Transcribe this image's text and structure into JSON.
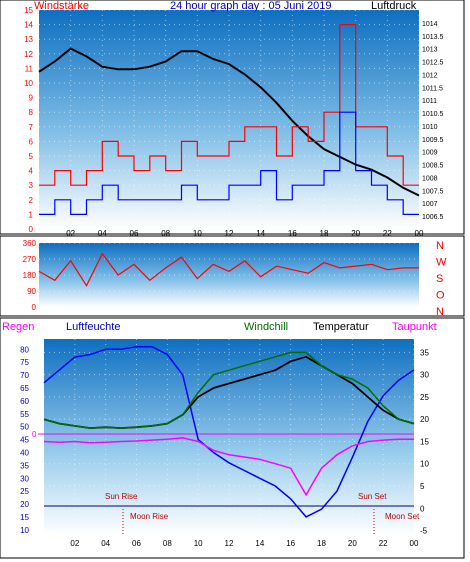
{
  "chart_data": [
    {
      "type": "line",
      "title": "24 hour graph day : 05 Juni 2019",
      "left_label": "Windstärke",
      "right_label": "Luftdruck",
      "x_tick_labels": [
        "02",
        "04",
        "06",
        "08",
        "10",
        "12",
        "14",
        "16",
        "18",
        "20",
        "22",
        "00"
      ],
      "x": [
        0,
        1,
        2,
        3,
        4,
        5,
        6,
        7,
        8,
        9,
        10,
        11,
        12,
        13,
        14,
        15,
        16,
        17,
        18,
        19,
        20,
        21,
        22,
        23,
        24
      ],
      "left_axis": {
        "ylim": [
          0,
          15
        ],
        "ticks": [
          0,
          1,
          2,
          3,
          4,
          5,
          6,
          7,
          8,
          9,
          10,
          11,
          12,
          13,
          14,
          15
        ]
      },
      "right_axis": {
        "ylim": [
          1006,
          1014.5
        ],
        "ticks": [
          "1006.5",
          "1007",
          "1007.5",
          "1008",
          "1008.5",
          "1009",
          "1009.5",
          "1010",
          "1010.5",
          "1011",
          "1011.5",
          "1012",
          "1012.5",
          "1013",
          "1013.5",
          "1014"
        ]
      },
      "series": [
        {
          "role": "pressure",
          "axis": "right",
          "color": "#000000",
          "values": [
            1012.1,
            1012.5,
            1013.0,
            1012.7,
            1012.3,
            1012.2,
            1012.2,
            1012.3,
            1012.5,
            1012.9,
            1012.9,
            1012.6,
            1012.4,
            1012.0,
            1011.5,
            1010.9,
            1010.2,
            1009.6,
            1009.1,
            1008.8,
            1008.5,
            1008.3,
            1008.0,
            1007.6,
            1007.3
          ]
        },
        {
          "role": "wind-gust",
          "axis": "left",
          "color": "#ff0000",
          "values": [
            3,
            4,
            3,
            4,
            6,
            5,
            4,
            5,
            4,
            6,
            5,
            5,
            6,
            7,
            7,
            5,
            7,
            6,
            8,
            14,
            7,
            7,
            5,
            3,
            3
          ]
        },
        {
          "role": "wind-speed",
          "axis": "left",
          "color": "#0000ff",
          "values": [
            1,
            2,
            1,
            2,
            3,
            2,
            2,
            2,
            2,
            3,
            2,
            2,
            3,
            3,
            4,
            2,
            3,
            3,
            4,
            8,
            4,
            3,
            2,
            1,
            1
          ]
        }
      ]
    },
    {
      "type": "line",
      "left_axis": {
        "ylim": [
          0,
          360
        ],
        "ticks": [
          "0",
          "90",
          "180",
          "270",
          "360"
        ]
      },
      "right_tick_labels": [
        "N",
        "W",
        "S",
        "O",
        "N"
      ],
      "x": [
        0,
        1,
        2,
        3,
        4,
        5,
        6,
        7,
        8,
        9,
        10,
        11,
        12,
        13,
        14,
        15,
        16,
        17,
        18,
        19,
        20,
        21,
        22,
        23,
        24
      ],
      "series": [
        {
          "role": "wind-direction",
          "color": "#ff0000",
          "values": [
            200,
            150,
            260,
            120,
            300,
            180,
            240,
            150,
            220,
            280,
            160,
            240,
            200,
            260,
            170,
            230,
            210,
            190,
            250,
            220,
            230,
            240,
            210,
            220,
            220
          ]
        }
      ]
    },
    {
      "type": "line",
      "left_label_rain": "Regen",
      "left_label_humidity": "Luftfeuchte",
      "label_windchill": "Windchill",
      "label_temperature": "Temperatur",
      "label_dewpoint": "Taupunkt",
      "x_tick_labels": [
        "02",
        "04",
        "06",
        "08",
        "10",
        "12",
        "14",
        "16",
        "18",
        "20",
        "22",
        "00"
      ],
      "left_axis": {
        "ylim": [
          8,
          84
        ],
        "ticks": [
          "10",
          "15",
          "20",
          "25",
          "30",
          "35",
          "40",
          "45",
          "50",
          "55",
          "60",
          "65",
          "70",
          "75",
          "80"
        ]
      },
      "right_axis": {
        "ylim": [
          -6,
          38
        ],
        "ticks": [
          "-5",
          "0",
          "5",
          "10",
          "15",
          "20",
          "25",
          "30",
          "35"
        ]
      },
      "rain_zero_label": "0",
      "annotations": {
        "sun_rise": "Sun Rise",
        "sun_set": "Sun Set",
        "moon_rise": "Moon Rise",
        "moon_set": "Moon Set"
      },
      "x": [
        0,
        1,
        2,
        3,
        4,
        5,
        6,
        7,
        8,
        9,
        10,
        11,
        12,
        13,
        14,
        15,
        16,
        17,
        18,
        19,
        20,
        21,
        22,
        23,
        24
      ],
      "series": [
        {
          "role": "humidity",
          "axis": "left",
          "color": "#0000ff",
          "values": [
            67,
            72,
            77,
            78,
            80,
            80,
            81,
            81,
            78,
            70,
            45,
            40,
            36,
            33,
            30,
            27,
            22,
            15,
            18,
            25,
            38,
            52,
            62,
            68,
            72
          ]
        },
        {
          "role": "temperature",
          "axis": "right",
          "color": "#000000",
          "values": [
            20,
            19,
            18.5,
            18,
            18.2,
            18,
            18.2,
            18.5,
            19,
            21,
            25,
            27,
            28,
            29,
            30,
            31,
            33,
            34,
            32,
            30,
            28,
            25,
            22,
            20,
            19
          ]
        },
        {
          "role": "windchill",
          "axis": "right",
          "color": "#007000",
          "values": [
            20,
            19,
            18.5,
            18,
            18.2,
            18,
            18.2,
            18.5,
            19,
            21,
            26,
            30,
            31,
            32,
            33,
            34,
            35,
            35,
            32,
            30,
            29,
            27,
            23,
            20,
            19
          ]
        },
        {
          "role": "dewpoint",
          "axis": "right",
          "color": "#ff00ff",
          "values": [
            15,
            14.8,
            15,
            14.7,
            14.8,
            15,
            15.1,
            15.3,
            15.5,
            15.8,
            15,
            13,
            12,
            11.5,
            11,
            10,
            9,
            3,
            9,
            12,
            14,
            15,
            15.3,
            15.5,
            15.5
          ]
        }
      ]
    }
  ]
}
